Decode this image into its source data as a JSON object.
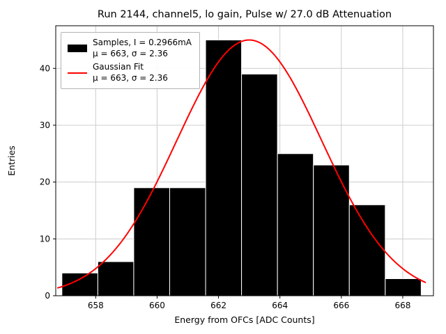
{
  "chart_data": {
    "type": "bar",
    "subtype": "histogram-with-fit",
    "title": "Run 2144, channel5, lo gain, Pulse w/ 27.0 dB Attenuation",
    "xlabel": "Energy from OFCs [ADC Counts]",
    "ylabel": "Entries",
    "xlim": [
      656.7,
      669.0
    ],
    "ylim": [
      0,
      47.5
    ],
    "xticks": [
      658,
      660,
      662,
      664,
      666,
      668
    ],
    "yticks": [
      0,
      10,
      20,
      30,
      40
    ],
    "grid": true,
    "grid_color": "#cccccc",
    "background_color": "#ffffff",
    "histogram": {
      "name": "Samples",
      "color": "#000000",
      "edge_color": "#ffffff",
      "bin_start": 656.9,
      "bin_width": 1.17,
      "counts": [
        4,
        6,
        19,
        19,
        45,
        39,
        25,
        23,
        16,
        3
      ]
    },
    "gaussian_fit": {
      "name": "Gaussian Fit",
      "color": "#ff0000",
      "mu": 663,
      "sigma": 2.36,
      "amplitude": 45,
      "line_width": 2
    },
    "legend": {
      "position": "upper-left",
      "entries": [
        {
          "type": "patch",
          "color": "#000000",
          "lines": [
            "Samples, I = 0.2966mA",
            "μ = 663, σ = 2.36"
          ]
        },
        {
          "type": "line",
          "color": "#ff0000",
          "lines": [
            "Gaussian Fit",
            "μ = 663, σ = 2.36"
          ]
        }
      ]
    }
  }
}
